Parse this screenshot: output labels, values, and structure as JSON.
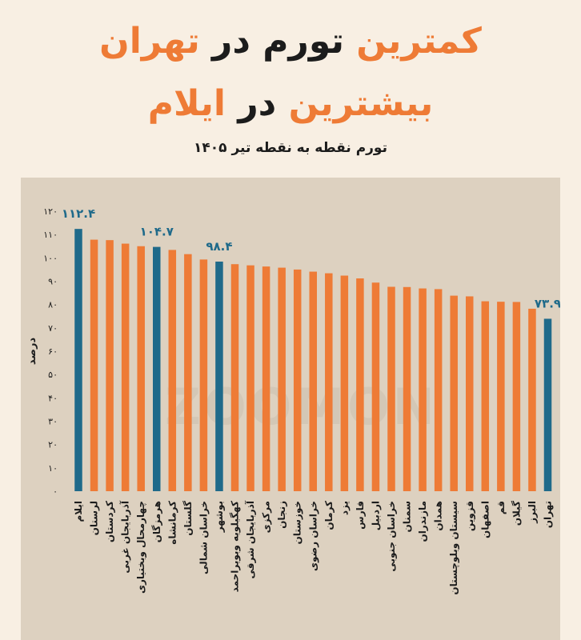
{
  "header": {
    "line1_part1": "کمترین",
    "line1_part2": "تورم در",
    "line1_part3": "تهران",
    "line2_part1": "بیشترین",
    "line2_part2": "در",
    "line2_part3": "ایلام",
    "subtitle": "تورم نقطه به نقطه تیر ۱۴۰۵"
  },
  "watermark": "ZOOMON",
  "colors": {
    "orange": "#ee7b36",
    "blue": "#1f6a8a",
    "panel": "#ddd1c0",
    "background": "#f8efe3"
  },
  "chart_data": {
    "type": "bar",
    "ylabel": "درصد",
    "ylim": [
      0,
      120
    ],
    "yticks": [
      0,
      10,
      20,
      30,
      40,
      50,
      60,
      70,
      80,
      90,
      100,
      110,
      120
    ],
    "grid": false,
    "categories": [
      "ایلام",
      "لرستان",
      "کردستان",
      "آذربایجان غربی",
      "چهارمحال وبختیاری",
      "هرمزگان",
      "کرمانشاه",
      "گلستان",
      "خراسان شمالی",
      "بوشهر",
      "کهگیلویه وبویراحمد",
      "آذربایجان شرقی",
      "مرکزی",
      "زنجان",
      "خوزستان",
      "خراسان رضوی",
      "کرمان",
      "یزد",
      "فارس",
      "اردبیل",
      "خراسان جنوبی",
      "سمنان",
      "مازندران",
      "همدان",
      "سیستان وبلوچستان",
      "قزوین",
      "اصفهان",
      "قم",
      "گیلان",
      "البرز",
      "تهران"
    ],
    "values": [
      112.4,
      107.8,
      107.6,
      106.1,
      105,
      104.7,
      103.4,
      101.6,
      99.3,
      98.4,
      97.3,
      96.8,
      96.3,
      95.8,
      95,
      94.1,
      93.4,
      92.4,
      91.2,
      89.4,
      87.6,
      87.5,
      86.9,
      86.6,
      83.8,
      83.5,
      81.4,
      81.2,
      81.1,
      78.2,
      73.9
    ],
    "highlighted": [
      0,
      5,
      9,
      30
    ],
    "data_labels": {
      "0": "۱۱۲.۴",
      "5": "۱۰۴.۷",
      "9": "۹۸.۴",
      "30": "۷۳.۹"
    }
  }
}
